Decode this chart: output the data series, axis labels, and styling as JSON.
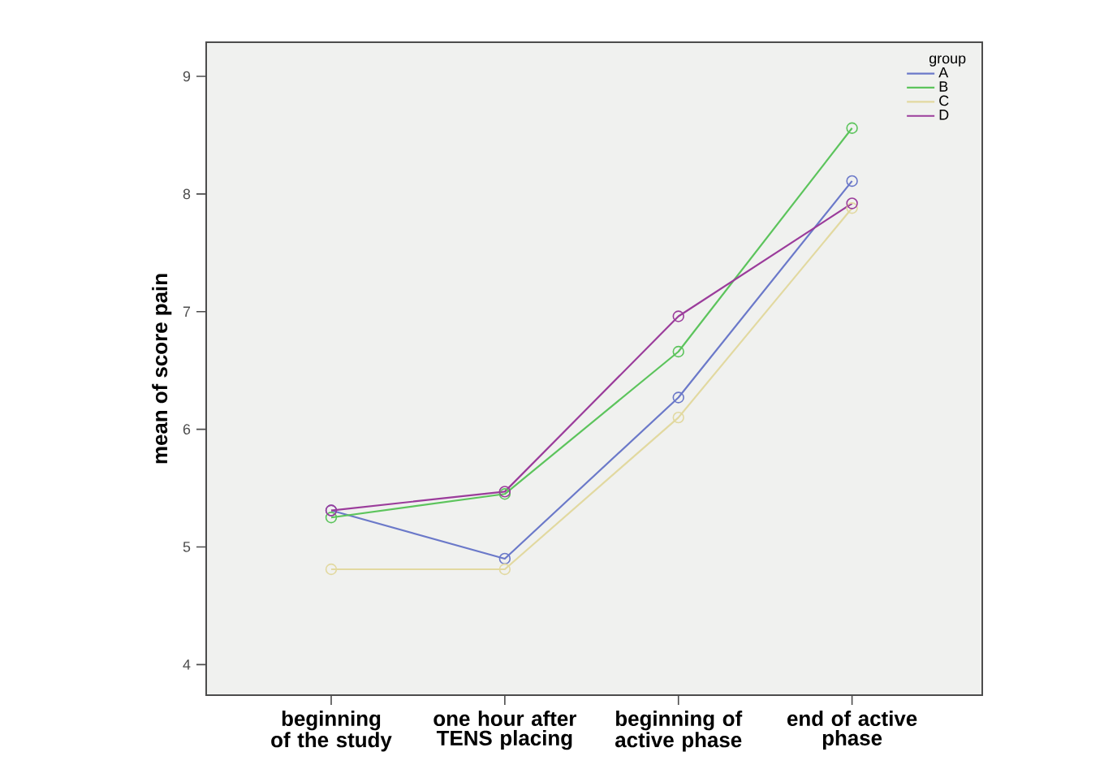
{
  "chart_data": {
    "type": "line",
    "ylabel": "mean of score pain",
    "legend_title": "group",
    "categories": [
      "beginning of the study",
      "one hour after TENS placing",
      "beginning of active phase",
      "end of active phase"
    ],
    "series": [
      {
        "name": "A",
        "color": "#6b79c9",
        "values": [
          5.31,
          4.9,
          6.27,
          8.11
        ]
      },
      {
        "name": "B",
        "color": "#5cc45c",
        "values": [
          5.25,
          5.45,
          6.66,
          8.56
        ]
      },
      {
        "name": "C",
        "color": "#e2d9a0",
        "values": [
          4.81,
          4.81,
          6.1,
          7.88
        ]
      },
      {
        "name": "D",
        "color": "#9b3c9b",
        "values": [
          5.31,
          5.47,
          6.96,
          7.92
        ]
      }
    ],
    "ylim": [
      3.74,
      9.29
    ],
    "yticks": [
      4,
      5,
      6,
      7,
      8,
      9
    ],
    "legend": "top right",
    "marker": "circle",
    "line_style": "solid",
    "grid": false
  }
}
